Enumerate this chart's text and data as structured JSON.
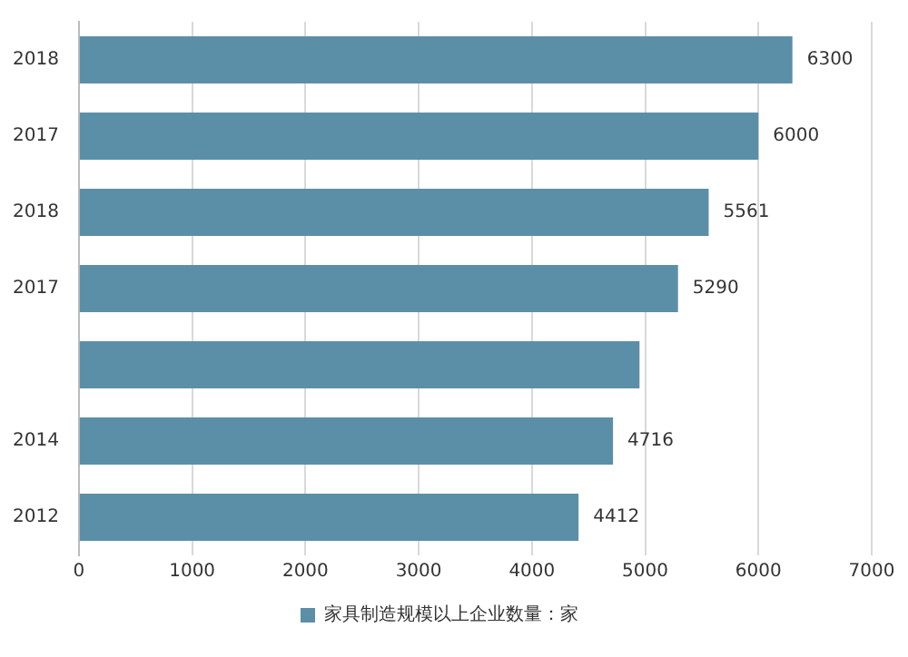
{
  "chart_data": {
    "type": "bar",
    "orientation": "horizontal",
    "categories": [
      "2018",
      "2017",
      "2018",
      "2017",
      null,
      "2014",
      "2012"
    ],
    "series": [
      {
        "name": "家具制造规模以上企业数量：家",
        "color": "#5b8fa8",
        "values": [
          6300,
          6000,
          5561,
          5290,
          4950,
          4716,
          4412
        ],
        "value_labels": [
          "6300",
          "6000",
          "5561",
          "5290",
          null,
          "4716",
          "4412"
        ]
      }
    ],
    "xlim": [
      0,
      7000
    ],
    "xticks": [
      0,
      1000,
      2000,
      3000,
      4000,
      5000,
      6000,
      7000
    ],
    "grid": "x",
    "legend": "bottom"
  }
}
